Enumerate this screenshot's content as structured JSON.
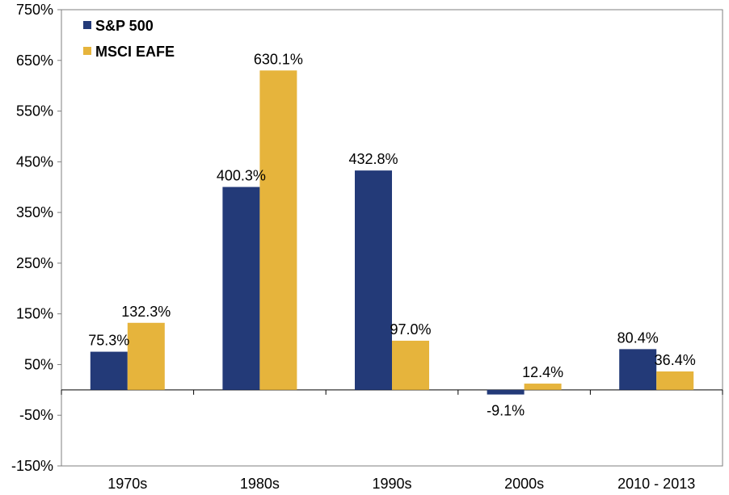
{
  "chart_data": {
    "type": "bar",
    "categories": [
      "1970s",
      "1980s",
      "1990s",
      "2000s",
      "2010 - 2013"
    ],
    "series": [
      {
        "name": "S&P 500",
        "color": "#233A78",
        "values": [
          75.3,
          400.3,
          432.8,
          -9.1,
          80.4
        ],
        "labels": [
          "75.3%",
          "400.3%",
          "432.8%",
          "-9.1%",
          "80.4%"
        ]
      },
      {
        "name": "MSCI EAFE",
        "color": "#E6B43C",
        "values": [
          132.3,
          630.1,
          97.0,
          12.4,
          36.4
        ],
        "labels": [
          "132.3%",
          "630.1%",
          "97.0%",
          "12.4%",
          "36.4%"
        ]
      }
    ],
    "ylim": [
      -150,
      750
    ],
    "yticks": [
      750,
      650,
      550,
      450,
      350,
      250,
      150,
      50,
      -50,
      -150
    ],
    "ytick_labels": [
      "750%",
      "650%",
      "550%",
      "450%",
      "350%",
      "250%",
      "150%",
      "50%",
      "-50%",
      "-150%"
    ],
    "grid": false,
    "legend_position": "top-left"
  }
}
